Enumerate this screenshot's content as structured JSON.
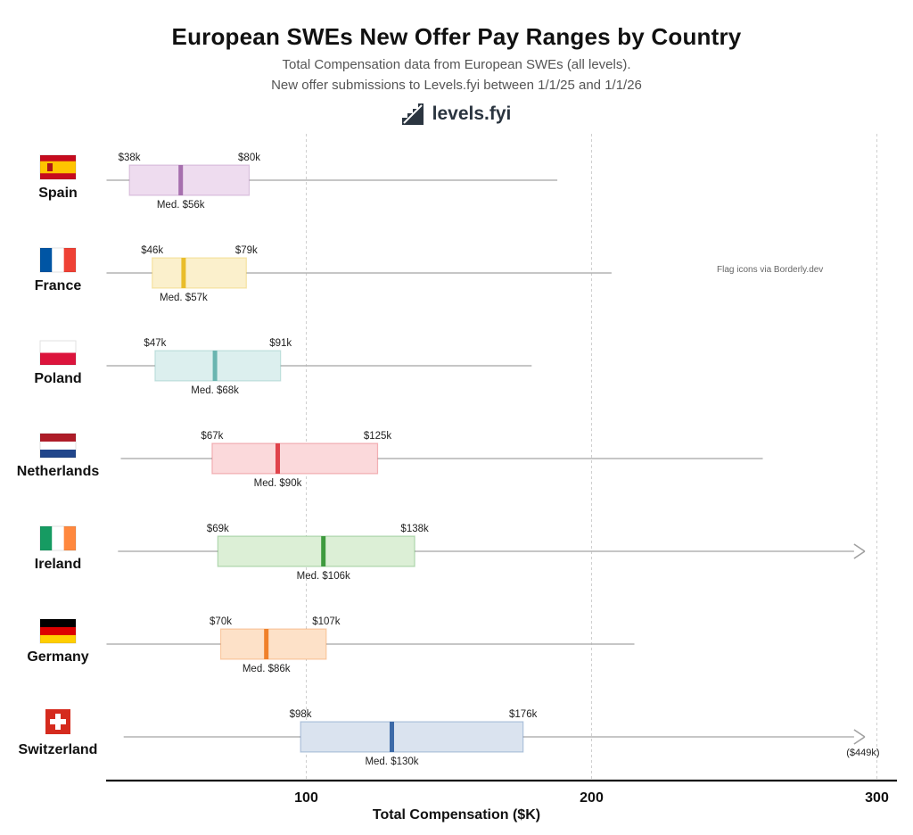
{
  "header": {
    "title": "European SWEs New Offer Pay Ranges by Country",
    "subtitle_line1": "Total Compensation data from European SWEs (all levels).",
    "subtitle_line2": "New offer submissions to Levels.fyi between 1/1/25 and 1/1/26",
    "brand": "levels.fyi",
    "brand_icon": "levels-logo-icon"
  },
  "credit": "Flag icons via Borderly.dev",
  "chart_data": {
    "type": "box",
    "title": "European SWEs New Offer Pay Ranges by Country",
    "xlabel": "Total Compensation ($K)",
    "ylabel": "",
    "xlim": [
      30,
      308
    ],
    "xticks": [
      100,
      200,
      300
    ],
    "grid": true,
    "legend": "none",
    "series": [
      {
        "country": "Spain",
        "min": 30,
        "q1": 38,
        "median": 56,
        "q3": 80,
        "max": 188,
        "q1_label": "$38k",
        "q3_label": "$80k",
        "median_label": "Med. $56k",
        "color": "#a66fae",
        "fill": "#eedcef",
        "flag": "spain-flag-icon"
      },
      {
        "country": "France",
        "min": 30,
        "q1": 46,
        "median": 57,
        "q3": 79,
        "max": 207,
        "q1_label": "$46k",
        "q3_label": "$79k",
        "median_label": "Med. $57k",
        "color": "#e9bd2b",
        "fill": "#fbf0cc",
        "flag": "france-flag-icon"
      },
      {
        "country": "Poland",
        "min": 30,
        "q1": 47,
        "median": 68,
        "q3": 91,
        "max": 179,
        "q1_label": "$47k",
        "q3_label": "$91k",
        "median_label": "Med. $68k",
        "color": "#6ab5b0",
        "fill": "#dcefee",
        "flag": "poland-flag-icon"
      },
      {
        "country": "Netherlands",
        "min": 35,
        "q1": 67,
        "median": 90,
        "q3": 125,
        "max": 260,
        "q1_label": "$67k",
        "q3_label": "$125k",
        "median_label": "Med. $90k",
        "color": "#e0434b",
        "fill": "#fbd9db",
        "flag": "netherlands-flag-icon"
      },
      {
        "country": "Ireland",
        "min": 34,
        "q1": 69,
        "median": 106,
        "q3": 138,
        "max": 293,
        "q1_label": "$69k",
        "q3_label": "$138k",
        "median_label": "Med. $106k",
        "color": "#3e9a3e",
        "fill": "#dcefd6",
        "flag": "ireland-flag-icon"
      },
      {
        "country": "Germany",
        "min": 30,
        "q1": 70,
        "median": 86,
        "q3": 107,
        "max": 215,
        "q1_label": "$70k",
        "q3_label": "$107k",
        "median_label": "Med. $86k",
        "color": "#f0802a",
        "fill": "#fde1c8",
        "flag": "germany-flag-icon"
      },
      {
        "country": "Switzerland",
        "min": 36,
        "q1": 98,
        "median": 130,
        "q3": 176,
        "max": 449,
        "q1_label": "$98k",
        "q3_label": "$176k",
        "median_label": "Med. $130k",
        "max_label": "($449k)",
        "color": "#3c6aa8",
        "fill": "#dae3ef",
        "flag": "switzerland-flag-icon"
      }
    ]
  }
}
